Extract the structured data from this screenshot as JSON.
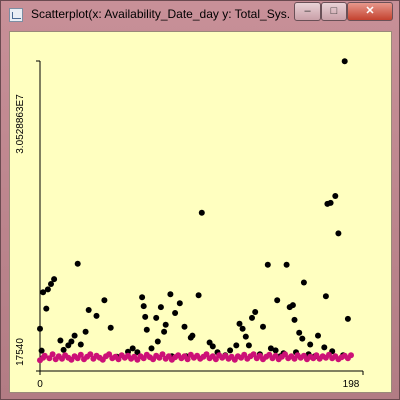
{
  "window": {
    "title": "Scatterplot(x: Availability_Date_day y: Total_Sys...",
    "controls": {
      "minimize": "–",
      "maximize": "□",
      "close": "✕"
    }
  },
  "chart_data": {
    "type": "scatter",
    "xlim": [
      0,
      198
    ],
    "ylim": [
      17540,
      30528863
    ],
    "x_tick_labels": [
      "0",
      "198"
    ],
    "y_tick_labels": [
      "17540",
      "3.0528863E7"
    ],
    "series": [
      {
        "color": "#000000",
        "points": [
          [
            0,
            3300000.0
          ],
          [
            1,
            1080000.0
          ],
          [
            2,
            7000000.0
          ],
          [
            4,
            5350000.0
          ],
          [
            5,
            7300000.0
          ],
          [
            7,
            7850000.0
          ],
          [
            9,
            8350000.0
          ],
          [
            13,
            2100000.0
          ],
          [
            15,
            1150000.0
          ],
          [
            18,
            1600000.0
          ],
          [
            20,
            2000000.0
          ],
          [
            22,
            2600000.0
          ],
          [
            24,
            9900000.0
          ],
          [
            26,
            1700000.0
          ],
          [
            29,
            3000000.0
          ],
          [
            31,
            5200000.0
          ],
          [
            36,
            4600000.0
          ],
          [
            41,
            6200000.0
          ],
          [
            45,
            3400000.0
          ],
          [
            49,
            450000.0
          ],
          [
            56,
            950000.0
          ],
          [
            59,
            1300000.0
          ],
          [
            62,
            900000.0
          ],
          [
            65,
            6500000.0
          ],
          [
            66,
            5600000.0
          ],
          [
            67,
            4500000.0
          ],
          [
            68,
            3200000.0
          ],
          [
            71,
            1300000.0
          ],
          [
            74,
            4400000.0
          ],
          [
            75,
            2000000.0
          ],
          [
            77,
            5500000.0
          ],
          [
            79,
            3000000.0
          ],
          [
            80,
            3700000.0
          ],
          [
            83,
            6800000.0
          ],
          [
            84,
            500000.0
          ],
          [
            86,
            4900000.0
          ],
          [
            89,
            5900000.0
          ],
          [
            92,
            3500000.0
          ],
          [
            93,
            500000.0
          ],
          [
            96,
            2400000.0
          ],
          [
            97,
            2600000.0
          ],
          [
            101,
            6700000.0
          ],
          [
            103,
            15100000.0
          ],
          [
            108,
            1900000.0
          ],
          [
            110,
            1500000.0
          ],
          [
            113,
            900000.0
          ],
          [
            118,
            600000.0
          ],
          [
            121,
            1100000.0
          ],
          [
            125,
            1600000.0
          ],
          [
            127,
            3800000.0
          ],
          [
            129,
            3300000.0
          ],
          [
            131,
            2500000.0
          ],
          [
            133,
            1600000.0
          ],
          [
            135,
            4400000.0
          ],
          [
            137,
            5000000.0
          ],
          [
            140,
            700000.0
          ],
          [
            142,
            3500000.0
          ],
          [
            145,
            9800000.0
          ],
          [
            147,
            1300000.0
          ],
          [
            150,
            1100000.0
          ],
          [
            151,
            6200000.0
          ],
          [
            153,
            500000.0
          ],
          [
            155,
            800000.0
          ],
          [
            157,
            9800000.0
          ],
          [
            159,
            5500000.0
          ],
          [
            161,
            5700000.0
          ],
          [
            162,
            4200000.0
          ],
          [
            163,
            900000.0
          ],
          [
            165,
            2900000.0
          ],
          [
            167,
            2300000.0
          ],
          [
            168,
            8000000.0
          ],
          [
            171,
            700000.0
          ],
          [
            172,
            1700000.0
          ],
          [
            175,
            500000.0
          ],
          [
            177,
            2600000.0
          ],
          [
            181,
            1400000.0
          ],
          [
            182,
            6600000.0
          ],
          [
            183,
            16000000.0
          ],
          [
            185,
            16100000.0
          ],
          [
            186,
            1000000.0
          ],
          [
            188,
            16800000.0
          ],
          [
            190,
            13000000.0
          ],
          [
            193,
            600000.0
          ],
          [
            194,
            30500000.0
          ],
          [
            196,
            4300000.0
          ]
        ]
      },
      {
        "color": "#cc1177",
        "points": [
          [
            0,
            100000.0
          ],
          [
            2,
            350000.0
          ],
          [
            3,
            550000.0
          ],
          [
            6,
            300000.0
          ],
          [
            8,
            700000.0
          ],
          [
            10,
            200000.0
          ],
          [
            12,
            500000.0
          ],
          [
            14,
            250000.0
          ],
          [
            16,
            600000.0
          ],
          [
            18,
            350000.0
          ],
          [
            20,
            150000.0
          ],
          [
            22,
            500000.0
          ],
          [
            24,
            300000.0
          ],
          [
            26,
            650000.0
          ],
          [
            28,
            200000.0
          ],
          [
            30,
            450000.0
          ],
          [
            32,
            700000.0
          ],
          [
            34,
            250000.0
          ],
          [
            36,
            550000.0
          ],
          [
            38,
            350000.0
          ],
          [
            40,
            150000.0
          ],
          [
            42,
            500000.0
          ],
          [
            44,
            700000.0
          ],
          [
            46,
            300000.0
          ],
          [
            48,
            450000.0
          ],
          [
            50,
            200000.0
          ],
          [
            52,
            600000.0
          ],
          [
            54,
            350000.0
          ],
          [
            56,
            550000.0
          ],
          [
            58,
            250000.0
          ],
          [
            60,
            450000.0
          ],
          [
            62,
            150000.0
          ],
          [
            64,
            500000.0
          ],
          [
            66,
            300000.0
          ],
          [
            68,
            650000.0
          ],
          [
            70,
            400000.0
          ],
          [
            72,
            200000.0
          ],
          [
            74,
            550000.0
          ],
          [
            76,
            350000.0
          ],
          [
            78,
            700000.0
          ],
          [
            80,
            250000.0
          ],
          [
            82,
            500000.0
          ],
          [
            84,
            150000.0
          ],
          [
            86,
            400000.0
          ],
          [
            88,
            600000.0
          ],
          [
            90,
            300000.0
          ],
          [
            92,
            500000.0
          ],
          [
            94,
            200000.0
          ],
          [
            96,
            650000.0
          ],
          [
            98,
            350000.0
          ],
          [
            100,
            550000.0
          ],
          [
            102,
            250000.0
          ],
          [
            104,
            450000.0
          ],
          [
            106,
            700000.0
          ],
          [
            108,
            300000.0
          ],
          [
            110,
            500000.0
          ],
          [
            112,
            200000.0
          ],
          [
            114,
            600000.0
          ],
          [
            116,
            350000.0
          ],
          [
            118,
            550000.0
          ],
          [
            120,
            250000.0
          ],
          [
            122,
            450000.0
          ],
          [
            124,
            150000.0
          ],
          [
            126,
            500000.0
          ],
          [
            128,
            350000.0
          ],
          [
            130,
            650000.0
          ],
          [
            132,
            250000.0
          ],
          [
            134,
            500000.0
          ],
          [
            136,
            700000.0
          ],
          [
            138,
            300000.0
          ],
          [
            140,
            550000.0
          ],
          [
            142,
            200000.0
          ],
          [
            144,
            450000.0
          ],
          [
            146,
            650000.0
          ],
          [
            148,
            300000.0
          ],
          [
            150,
            550000.0
          ],
          [
            152,
            200000.0
          ],
          [
            154,
            450000.0
          ],
          [
            156,
            700000.0
          ],
          [
            158,
            300000.0
          ],
          [
            160,
            500000.0
          ],
          [
            162,
            250000.0
          ],
          [
            164,
            600000.0
          ],
          [
            166,
            350000.0
          ],
          [
            168,
            550000.0
          ],
          [
            170,
            200000.0
          ],
          [
            172,
            450000.0
          ],
          [
            174,
            300000.0
          ],
          [
            176,
            600000.0
          ],
          [
            178,
            250000.0
          ],
          [
            180,
            500000.0
          ],
          [
            182,
            350000.0
          ],
          [
            184,
            650000.0
          ],
          [
            186,
            300000.0
          ],
          [
            188,
            500000.0
          ],
          [
            190,
            200000.0
          ],
          [
            192,
            400000.0
          ],
          [
            194,
            550000.0
          ],
          [
            196,
            300000.0
          ],
          [
            198,
            600000.0
          ]
        ]
      }
    ]
  }
}
